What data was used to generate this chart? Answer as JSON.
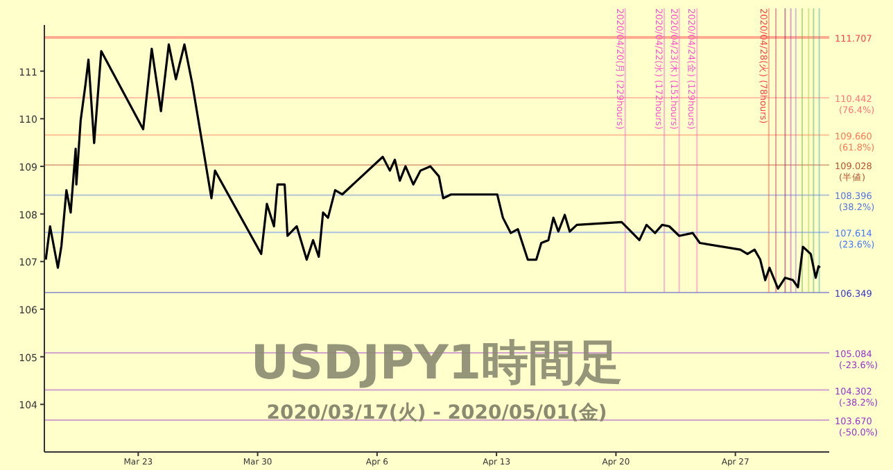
{
  "chart_data": {
    "type": "line",
    "title": "USDJPY1時間足",
    "subtitle": "2020/03/17(火) - 2020/05/01(金)",
    "x": [
      "2020-03-17T14:00",
      "2020-03-17T20:00",
      "2020-03-18T07:00",
      "2020-03-18T12:00",
      "2020-03-18T19:00",
      "2020-03-19T01:00",
      "2020-03-19T08:00",
      "2020-03-19T09:00",
      "2020-03-19T15:00",
      "2020-03-19T22:00",
      "2020-03-20T02:00",
      "2020-03-20T10:00",
      "2020-03-20T20:00",
      "2020-03-23T07:00",
      "2020-03-23T19:00",
      "2020-03-24T08:00",
      "2020-03-24T19:00",
      "2020-03-25T05:00",
      "2020-03-25T17:00",
      "2020-03-26T04:00",
      "2020-03-26T18:00",
      "2020-03-27T07:00",
      "2020-03-27T12:00",
      "2020-03-30T05:00",
      "2020-03-30T13:00",
      "2020-03-30T23:00",
      "2020-03-31T04:00",
      "2020-03-31T14:00",
      "2020-03-31T18:00",
      "2020-04-01T07:00",
      "2020-04-01T21:00",
      "2020-04-02T06:00",
      "2020-04-02T14:00",
      "2020-04-02T20:00",
      "2020-04-03T03:00",
      "2020-04-03T13:00",
      "2020-04-03T23:00",
      "2020-04-06T08:00",
      "2020-04-06T18:00",
      "2020-04-07T01:00",
      "2020-04-07T08:00",
      "2020-04-07T16:00",
      "2020-04-08T03:00",
      "2020-04-08T13:00",
      "2020-04-09T03:00",
      "2020-04-09T15:00",
      "2020-04-09T21:00",
      "2020-04-10T08:00",
      "2020-04-13T01:00",
      "2020-04-13T09:00",
      "2020-04-13T20:00",
      "2020-04-14T06:00",
      "2020-04-14T20:00",
      "2020-04-15T08:00",
      "2020-04-15T15:00",
      "2020-04-16T01:00",
      "2020-04-16T08:00",
      "2020-04-16T15:00",
      "2020-04-17T00:00",
      "2020-04-17T07:00",
      "2020-04-17T17:00",
      "2020-04-20T08:00",
      "2020-04-20T18:00",
      "2020-04-21T09:00",
      "2020-04-21T19:00",
      "2020-04-22T07:00",
      "2020-04-22T17:00",
      "2020-04-23T03:00",
      "2020-04-23T17:00",
      "2020-04-24T12:00",
      "2020-04-24T22:00",
      "2020-04-27T07:00",
      "2020-04-27T17:00",
      "2020-04-28T03:00",
      "2020-04-28T11:00",
      "2020-04-28T18:00",
      "2020-04-29T00:00",
      "2020-04-29T12:00",
      "2020-04-29T22:00",
      "2020-04-30T09:00",
      "2020-04-30T16:00",
      "2020-04-30T23:00",
      "2020-05-01T10:00",
      "2020-05-01T17:00",
      "2020-05-01T21:00",
      "2020-05-01T23:00"
    ],
    "series": [
      {
        "color": "#000000",
        "values": [
          107.04,
          107.74,
          106.87,
          107.33,
          108.5,
          108.03,
          109.37,
          108.62,
          109.96,
          110.74,
          111.24,
          109.49,
          111.42,
          109.78,
          111.47,
          110.16,
          111.56,
          110.83,
          111.56,
          110.74,
          109.49,
          108.33,
          108.91,
          107.16,
          108.21,
          107.74,
          108.62,
          108.62,
          107.54,
          107.74,
          107.04,
          107.45,
          107.1,
          108.03,
          107.92,
          108.5,
          108.41,
          109.2,
          108.91,
          109.14,
          108.7,
          109.0,
          108.62,
          108.91,
          109.0,
          108.79,
          108.33,
          108.41,
          108.41,
          107.92,
          107.6,
          107.68,
          107.04,
          107.04,
          107.39,
          107.45,
          107.92,
          107.63,
          107.98,
          107.63,
          107.77,
          107.83,
          107.68,
          107.45,
          107.77,
          107.6,
          107.77,
          107.74,
          107.54,
          107.6,
          107.39,
          107.25,
          107.16,
          107.25,
          107.04,
          106.61,
          106.87,
          106.43,
          106.66,
          106.61,
          106.46,
          107.31,
          107.16,
          106.66,
          106.9,
          106.87
        ]
      }
    ],
    "xlim": [
      "2020-03-17T12:00",
      "2020-05-02T12:00"
    ],
    "xticks": [
      {
        "value": "2020-03-23",
        "label": "Mar 23"
      },
      {
        "value": "2020-03-30",
        "label": "Mar 30"
      },
      {
        "value": "2020-04-06",
        "label": "Apr 6"
      },
      {
        "value": "2020-04-13",
        "label": "Apr 13"
      },
      {
        "value": "2020-04-20",
        "label": "Apr 20"
      },
      {
        "value": "2020-04-27",
        "label": "Apr 27"
      }
    ],
    "ylim": [
      103.0,
      111.97
    ],
    "yticks": [
      104,
      105,
      106,
      107,
      108,
      109,
      110,
      111
    ],
    "ref_lines": [
      {
        "axis": "y",
        "value": 111.707,
        "label": "111.707",
        "color": "#ff4444"
      },
      {
        "axis": "y",
        "value": 110.442,
        "label": "110.442\n(76.4%)",
        "color": "#ff7777"
      },
      {
        "axis": "y",
        "value": 109.66,
        "label": "109.660\n(61.8%)",
        "color": "#ff7755"
      },
      {
        "axis": "y",
        "value": 109.028,
        "label": "109.028\n(半値)",
        "color": "#bb5533"
      },
      {
        "axis": "y",
        "value": 108.396,
        "label": "108.396\n(38.2%)",
        "color": "#5577dd"
      },
      {
        "axis": "y",
        "value": 107.614,
        "label": "107.614\n(23.6%)",
        "color": "#4477ff"
      },
      {
        "axis": "y",
        "value": 106.349,
        "label": "106.349",
        "color": "#3333cc"
      },
      {
        "axis": "y",
        "value": 105.084,
        "label": "105.084\n(-23.6%)",
        "color": "#9933cc"
      },
      {
        "axis": "y",
        "value": 104.302,
        "label": "104.302\n(-38.2%)",
        "color": "#9933cc"
      },
      {
        "axis": "y",
        "value": 103.67,
        "label": "103.670\n(-50.0%)",
        "color": "#9933cc"
      },
      {
        "axis": "x",
        "value": "2020-04-20T13:00",
        "label": "2020/04/20(月) (229hours)",
        "color": "#ff55cc"
      },
      {
        "axis": "x",
        "value": "2020-04-22T20:00",
        "label": "2020/04/22(水) (172hours)",
        "color": "#ff55cc"
      },
      {
        "axis": "x",
        "value": "2020-04-23T17:00",
        "label": "2020/04/23(木) (151hours)",
        "color": "#ff55cc"
      },
      {
        "axis": "x",
        "value": "2020-04-24T18:00",
        "label": "2020/04/24(金) (129hours)",
        "color": "#ff55cc"
      },
      {
        "axis": "x",
        "value": "2020-04-28T23:00",
        "label": "2020/04/28(火) (78hours)",
        "color": "#ff4444"
      },
      {
        "axis": "x",
        "value": "2020-04-29T09:00",
        "label": null,
        "color": "#cc2266"
      },
      {
        "axis": "x",
        "value": "2020-04-29T22:00",
        "label": null,
        "color": "#880066"
      },
      {
        "axis": "x",
        "value": "2020-04-30T06:00",
        "label": null,
        "color": "#aa33cc"
      },
      {
        "axis": "x",
        "value": "2020-04-30T13:00",
        "label": null,
        "color": "#9966dd"
      },
      {
        "axis": "x",
        "value": "2020-04-30T22:00",
        "label": null,
        "color": "#66aa33"
      },
      {
        "axis": "x",
        "value": "2020-05-01T07:00",
        "label": null,
        "color": "#99cc33"
      },
      {
        "axis": "x",
        "value": "2020-05-01T14:00",
        "label": null,
        "color": "#44aa66"
      },
      {
        "axis": "x",
        "value": "2020-05-01T22:00",
        "label": null,
        "color": "#33aaaa"
      }
    ],
    "line_style": "solid"
  }
}
